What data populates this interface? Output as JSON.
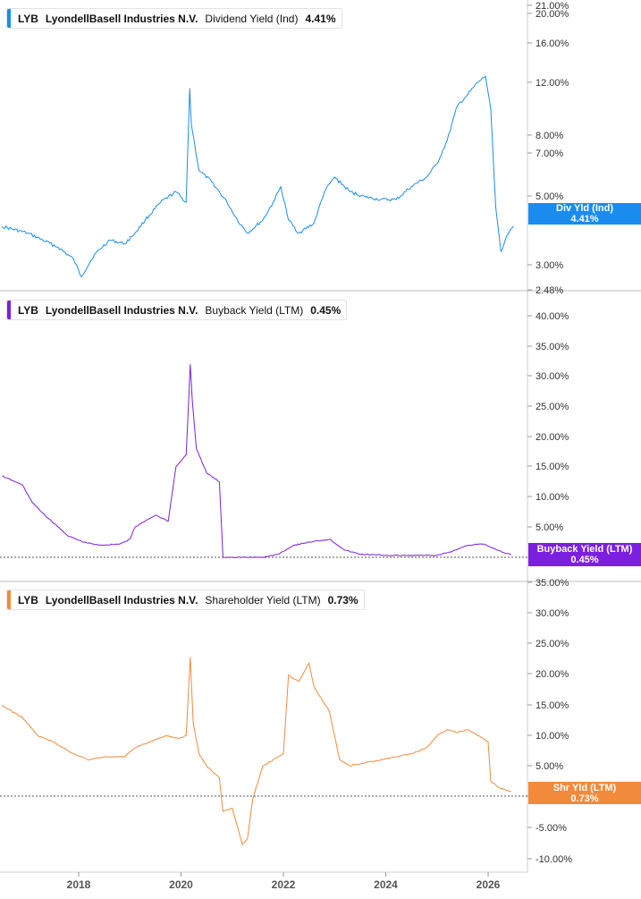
{
  "panels": [
    {
      "ticker": "LYB",
      "company": "LyondellBasell Industries N.V.",
      "metric": "Dividend Yield (Ind)",
      "value": "4.41%",
      "badge_label": "Div Yld (Ind)",
      "badge_value": "4.41%",
      "color": "#1a8cf0"
    },
    {
      "ticker": "LYB",
      "company": "LyondellBasell Industries N.V.",
      "metric": "Buyback Yield (LTM)",
      "value": "0.45%",
      "badge_label": "Buyback Yield (LTM)",
      "badge_value": "0.45%",
      "color": "#7b1fe0"
    },
    {
      "ticker": "LYB",
      "company": "LyondellBasell Industries N.V.",
      "metric": "Shareholder Yield (LTM)",
      "value": "0.73%",
      "badge_label": "Shr Yld (LTM)",
      "badge_value": "0.73%",
      "color": "#f28a3c"
    }
  ],
  "chart_data": [
    {
      "type": "line",
      "series": [
        {
          "name": "LYB Dividend Yield (Ind)",
          "x": [
            2016.5,
            2017.0,
            2017.3,
            2017.6,
            2017.9,
            2018.05,
            2018.3,
            2018.6,
            2018.9,
            2019.1,
            2019.3,
            2019.6,
            2019.9,
            2020.1,
            2020.17,
            2020.2,
            2020.35,
            2020.6,
            2020.9,
            2021.1,
            2021.3,
            2021.6,
            2021.8,
            2021.95,
            2022.1,
            2022.3,
            2022.6,
            2022.8,
            2023.0,
            2023.3,
            2023.6,
            2023.9,
            2024.2,
            2024.5,
            2024.8,
            2025.0,
            2025.2,
            2025.4,
            2025.6,
            2025.8,
            2025.95,
            2026.05,
            2026.15,
            2026.25,
            2026.4,
            2026.5
          ],
          "y": [
            4.4,
            4.2,
            4.0,
            3.8,
            3.5,
            3.1,
            3.6,
            4.0,
            3.9,
            4.2,
            4.6,
            5.2,
            5.6,
            5.2,
            11.5,
            9.0,
            6.5,
            6.0,
            5.2,
            4.6,
            4.2,
            4.6,
            5.2,
            5.8,
            4.6,
            4.2,
            4.5,
            5.6,
            6.2,
            5.6,
            5.4,
            5.3,
            5.3,
            5.8,
            6.2,
            6.8,
            8.0,
            10.2,
            11.0,
            12.0,
            12.5,
            10.0,
            5.0,
            3.7,
            4.2,
            4.41
          ],
          "color": "#1a8cf0"
        }
      ],
      "y_scale": "log",
      "y_ticks": [
        "21.00%",
        "20.00%",
        "16.00%",
        "12.00%",
        "8.00%",
        "7.00%",
        "5.00%",
        "3.00%",
        "2.48%"
      ]
    },
    {
      "type": "line",
      "series": [
        {
          "name": "LYB Buyback Yield (LTM)",
          "x": [
            2016.5,
            2016.9,
            2017.1,
            2017.4,
            2017.6,
            2017.8,
            2018.1,
            2018.4,
            2018.8,
            2019.0,
            2019.1,
            2019.3,
            2019.5,
            2019.75,
            2019.9,
            2020.1,
            2020.18,
            2020.22,
            2020.3,
            2020.5,
            2020.75,
            2020.82,
            2021.0,
            2021.3,
            2021.6,
            2021.9,
            2022.2,
            2022.5,
            2022.9,
            2023.2,
            2023.5,
            2023.8,
            2024.1,
            2024.4,
            2024.7,
            2025.0,
            2025.3,
            2025.6,
            2025.9,
            2026.1,
            2026.3,
            2026.45
          ],
          "y": [
            13.5,
            12.0,
            9.0,
            6.5,
            5.0,
            3.5,
            2.5,
            2.0,
            2.2,
            3.0,
            5.0,
            6.0,
            7.0,
            6.0,
            15.0,
            17.0,
            32.0,
            26.0,
            18.0,
            14.0,
            12.5,
            0.0,
            0.0,
            0.0,
            0.0,
            0.5,
            2.0,
            2.5,
            3.0,
            1.2,
            0.5,
            0.4,
            0.3,
            0.3,
            0.3,
            0.3,
            1.0,
            2.0,
            2.2,
            1.5,
            0.8,
            0.45
          ],
          "color": "#7b1fe0"
        }
      ],
      "y_ticks": [
        "40.00%",
        "35.00%",
        "30.00%",
        "25.00%",
        "20.00%",
        "15.00%",
        "10.00%",
        "5.00%"
      ]
    },
    {
      "type": "line",
      "series": [
        {
          "name": "LYB Shareholder Yield (LTM)",
          "x": [
            2016.5,
            2016.9,
            2017.2,
            2017.5,
            2017.9,
            2018.2,
            2018.5,
            2018.9,
            2019.1,
            2019.4,
            2019.7,
            2019.95,
            2020.1,
            2020.18,
            2020.24,
            2020.35,
            2020.5,
            2020.75,
            2020.82,
            2021.0,
            2021.2,
            2021.3,
            2021.4,
            2021.6,
            2021.8,
            2022.0,
            2022.1,
            2022.3,
            2022.5,
            2022.6,
            2022.9,
            2023.1,
            2023.3,
            2023.6,
            2023.9,
            2024.2,
            2024.5,
            2024.8,
            2025.0,
            2025.2,
            2025.4,
            2025.6,
            2025.8,
            2026.0,
            2026.05,
            2026.2,
            2026.45
          ],
          "y": [
            15.0,
            13.0,
            10.0,
            9.0,
            7.0,
            6.0,
            6.5,
            6.5,
            8.0,
            9.0,
            10.0,
            9.5,
            10.0,
            23.0,
            12.0,
            7.0,
            5.0,
            3.0,
            -2.5,
            -2.0,
            -8.0,
            -7.0,
            -0.5,
            5.0,
            6.0,
            7.0,
            20.0,
            19.0,
            22.0,
            18.0,
            14.0,
            6.0,
            5.0,
            5.5,
            6.0,
            6.5,
            7.0,
            8.0,
            10.0,
            11.0,
            10.5,
            11.0,
            10.0,
            9.0,
            2.5,
            1.5,
            0.73
          ],
          "color": "#f28a3c"
        }
      ],
      "y_ticks": [
        "35.00%",
        "30.00%",
        "25.00%",
        "20.00%",
        "15.00%",
        "10.00%",
        "5.00%",
        "0.00%",
        "-5.00%",
        "-10.00%"
      ]
    }
  ],
  "x_ticks": [
    "2018",
    "2020",
    "2022",
    "2024",
    "2026"
  ]
}
